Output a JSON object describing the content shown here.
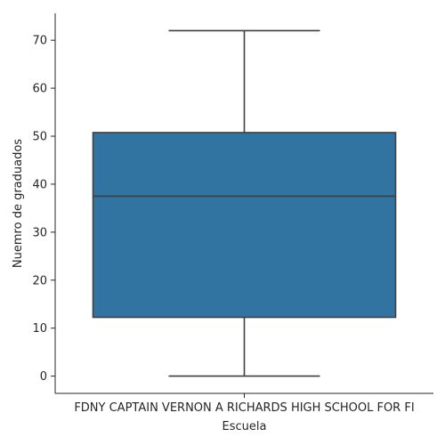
{
  "chart_data": {
    "type": "box",
    "categories": [
      "FDNY  CAPTAIN VERNON A RICHARDS HIGH SCHOOL FOR FI"
    ],
    "boxes": [
      {
        "category": "FDNY  CAPTAIN VERNON A RICHARDS HIGH SCHOOL FOR FI",
        "whisker_low": 0,
        "q1": 12.25,
        "median": 37.5,
        "q3": 50.75,
        "whisker_high": 72
      }
    ],
    "xlabel": "Escuela",
    "ylabel": "Nuemro de graduados",
    "ylim": [
      -3.6,
      75.6
    ],
    "yticks": [
      0,
      10,
      20,
      30,
      40,
      50,
      60,
      70
    ],
    "grid": false,
    "colors": {
      "box_fill": "#3274a1",
      "line": "#3f3f3f",
      "axis": "#262626"
    }
  }
}
